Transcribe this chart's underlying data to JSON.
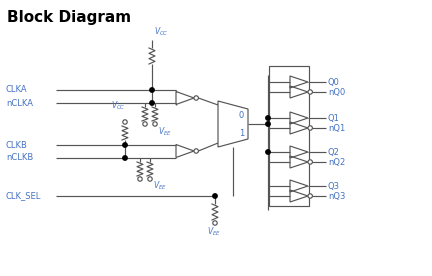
{
  "title": "Block Diagram",
  "title_fontsize": 11,
  "line_color": "#555555",
  "label_color": "#4472c4",
  "bg_color": "#ffffff",
  "input_labels": [
    "CLKA",
    "nCLKA",
    "CLKB",
    "nCLKB",
    "CLK_SEL"
  ],
  "output_labels": [
    "Q0",
    "nQ0",
    "Q1",
    "nQ1",
    "Q2",
    "nQ2",
    "Q3",
    "nQ3"
  ]
}
